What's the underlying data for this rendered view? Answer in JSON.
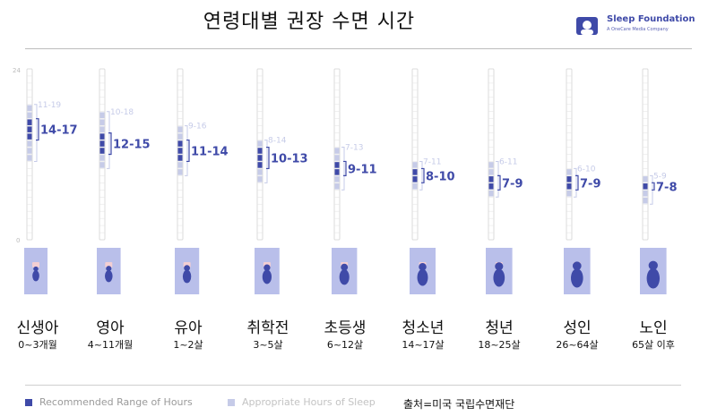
{
  "title": "연령대별 권장 수면 시간",
  "brand": {
    "name": "Sleep Foundation",
    "tagline": "A OneCare Media Company"
  },
  "colors": {
    "recommended": "#3f4aa8",
    "appropriate": "#c6cbe8",
    "column_border": "#cccccc",
    "bracket_recommended": "#3f4aa8",
    "bracket_appropriate": "#c6cbe8",
    "figure_panel": "#b9bfea",
    "figure_pillow": "#f3cfd3",
    "figure_body": "#3f4aa8"
  },
  "chart_data": {
    "type": "bar",
    "title": "연령대별 권장 수면 시간",
    "ylim": [
      0,
      24
    ],
    "ytick_labels": [
      "24",
      "0"
    ],
    "categories": [
      "신생아",
      "영아",
      "유아",
      "취학전",
      "초등생",
      "청소년",
      "청년",
      "성인",
      "노인"
    ],
    "age_ranges": [
      "0~3개월",
      "4~11개월",
      "1~2살",
      "3~5살",
      "6~12살",
      "14~17살",
      "18~25살",
      "26~64살",
      "65살 이후"
    ],
    "series": [
      {
        "name": "Recommended Range of Hours",
        "ranges": [
          [
            14,
            17
          ],
          [
            12,
            15
          ],
          [
            11,
            14
          ],
          [
            10,
            13
          ],
          [
            9,
            11
          ],
          [
            8,
            10
          ],
          [
            7,
            9
          ],
          [
            7,
            9
          ],
          [
            7,
            8
          ]
        ],
        "labels": [
          "14-17",
          "12-15",
          "11-14",
          "10-13",
          "9-11",
          "8-10",
          "7-9",
          "7-9",
          "7-8"
        ]
      },
      {
        "name": "Appropriate Hours of Sleep",
        "ranges": [
          [
            11,
            19
          ],
          [
            10,
            18
          ],
          [
            9,
            16
          ],
          [
            8,
            14
          ],
          [
            7,
            13
          ],
          [
            7,
            11
          ],
          [
            6,
            11
          ],
          [
            6,
            10
          ],
          [
            5,
            9
          ]
        ],
        "labels": [
          "11-19",
          "10-18",
          "9-16",
          "8-14",
          "7-13",
          "7-11",
          "6-11",
          "6-10",
          "5-9"
        ]
      }
    ],
    "legend": "bottom-left"
  },
  "figures": [
    "baby",
    "baby",
    "toddler",
    "child",
    "child-curled",
    "teen-curled",
    "adult",
    "adult-curled",
    "adult-curled"
  ],
  "source": "출처=미국 국립수면재단"
}
